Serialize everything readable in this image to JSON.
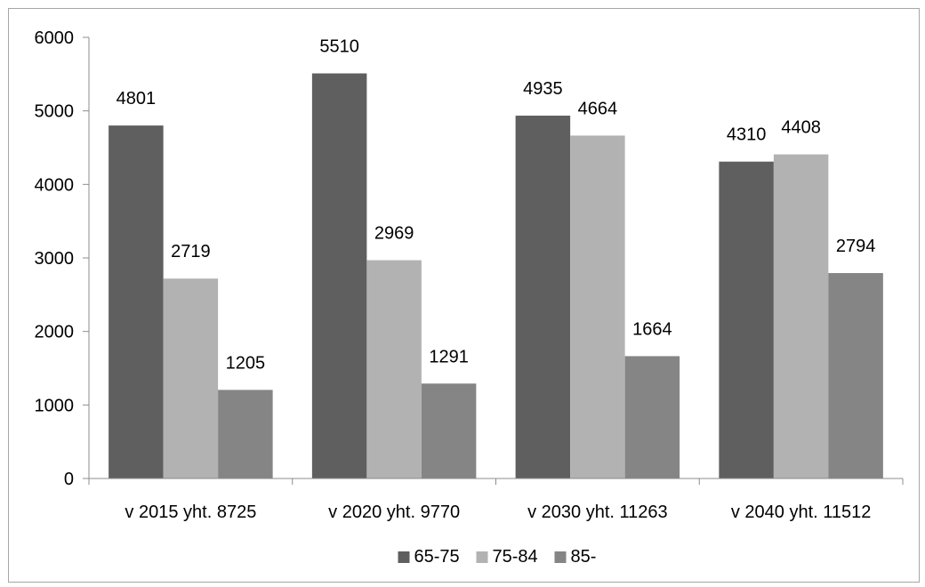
{
  "chart_data": {
    "type": "bar",
    "title": "",
    "xlabel": "",
    "ylabel": "",
    "categories": [
      "v 2015 yht. 8725",
      "v 2020 yht. 9770",
      "v 2030 yht. 11263",
      "v 2040 yht. 11512"
    ],
    "series": [
      {
        "name": "65-75",
        "color": "#5f5f5f",
        "values": [
          4801,
          5510,
          4935,
          4310
        ]
      },
      {
        "name": "75-84",
        "color": "#b2b2b2",
        "values": [
          2719,
          2969,
          4664,
          4408
        ]
      },
      {
        "name": "85-",
        "color": "#858585",
        "values": [
          1205,
          1291,
          1664,
          2794
        ]
      }
    ],
    "ylim": [
      0,
      6000
    ],
    "yticks": [
      0,
      1000,
      2000,
      3000,
      4000,
      5000,
      6000
    ],
    "grid": false,
    "legend_position": "bottom"
  }
}
